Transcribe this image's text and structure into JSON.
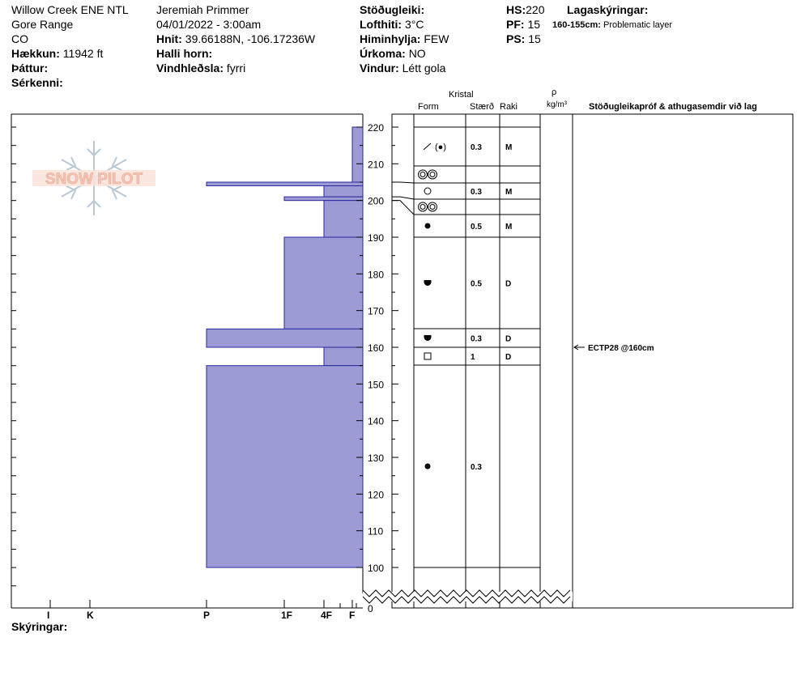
{
  "header": {
    "location": "Willow Creek ENE NTL",
    "range": "Gore Range",
    "state": "CO",
    "elevation_label": "Hækkun:",
    "elevation_value": "11942 ft",
    "aspect_label": "Þáttur:",
    "features_label": "Sérkenni:",
    "observer": "Jeremiah Primmer",
    "datetime": "04/01/2022 - 3:00am",
    "coords_label": "Hnit:",
    "coords_value": "39.66188N, -106.17236W",
    "slope_label": "Halli horn:",
    "wind_loading_label": "Vindhleðsla:",
    "wind_loading_value": "fyrri",
    "stability_label": "Stöðugleiki:",
    "air_temp_label": "Lofthiti:",
    "air_temp_value": "3°C",
    "sky_label": "Himinhylja:",
    "sky_value": "FEW",
    "precip_label": "Úrkoma:",
    "precip_value": "NO",
    "wind_label": "Vindur:",
    "wind_value": "Létt gola",
    "hs_label": "HS:",
    "hs_value": "220",
    "pf_label": "PF:",
    "pf_value": "15",
    "ps_label": "PS:",
    "ps_value": "15",
    "layer_notes_label": "Lagaskýringar:",
    "layer_note_range": "160-155cm:",
    "layer_note_text": "Problematic layer"
  },
  "columns": {
    "crystal": "Kristal",
    "form": "Form",
    "size": "Stærð",
    "moisture": "Raki",
    "rho": "ρ",
    "density_unit": "kg/m³",
    "tests": "Stöðugleikapróf & athugasemdir við lag"
  },
  "logo_text": "SNOW PILOT",
  "footer_label": "Skýringar:",
  "colors": {
    "hardness_fill": "#9c9bd6",
    "hardness_stroke": "#2a2a9a",
    "logo_text": "#f3c4b5",
    "logo_flake": "#b9c7d3"
  },
  "chart_data": {
    "type": "snow-profile",
    "depth_axis": {
      "min": 0,
      "max": 220,
      "unit": "cm",
      "ticks": [
        "220",
        "210",
        "200",
        "190",
        "180",
        "170",
        "160",
        "150",
        "140",
        "130",
        "120",
        "110",
        "100",
        "0"
      ],
      "break_between": [
        0,
        100
      ]
    },
    "hardness_scale": [
      "I",
      "K",
      "P",
      "1F",
      "4F",
      "F"
    ],
    "hardness_profile": [
      {
        "top": 220,
        "bottom": 205,
        "hardness": "F"
      },
      {
        "top": 205,
        "bottom": 204,
        "hardness": "P"
      },
      {
        "top": 204,
        "bottom": 201,
        "hardness": "4F"
      },
      {
        "top": 201,
        "bottom": 200,
        "hardness": "1F"
      },
      {
        "top": 200,
        "bottom": 190,
        "hardness": "4F"
      },
      {
        "top": 190,
        "bottom": 165,
        "hardness": "1F"
      },
      {
        "top": 165,
        "bottom": 160,
        "hardness": "P"
      },
      {
        "top": 160,
        "bottom": 155,
        "hardness": "4F"
      },
      {
        "top": 155,
        "bottom": 100,
        "hardness": "P"
      }
    ],
    "layers": [
      {
        "top": 220,
        "bottom": 205,
        "form": "precip-particles-and-round",
        "size": "0.3",
        "moisture": "M"
      },
      {
        "top": 205,
        "bottom": 201,
        "form": "melt-forms-clusters",
        "size": "",
        "moisture": ""
      },
      {
        "top": 201,
        "bottom": 200,
        "form": "graupel-round",
        "size": "0.3",
        "moisture": "M"
      },
      {
        "top": 200,
        "bottom": 196,
        "form": "melt-forms-clusters",
        "size": "",
        "moisture": ""
      },
      {
        "top": 196,
        "bottom": 190,
        "form": "rounded-grains",
        "size": "0.5",
        "moisture": "M"
      },
      {
        "top": 190,
        "bottom": 165,
        "form": "rounding-faceted",
        "size": "0.5",
        "moisture": "D"
      },
      {
        "top": 165,
        "bottom": 160,
        "form": "rounding-faceted",
        "size": "0.3",
        "moisture": "D"
      },
      {
        "top": 160,
        "bottom": 155,
        "form": "faceted-crystals",
        "size": "1",
        "moisture": "D"
      },
      {
        "top": 155,
        "bottom": 100,
        "form": "rounded-grains",
        "size": "0.3",
        "moisture": ""
      }
    ],
    "stability_tests": [
      {
        "depth": 160,
        "label": "ECTP28 @160cm"
      }
    ]
  }
}
